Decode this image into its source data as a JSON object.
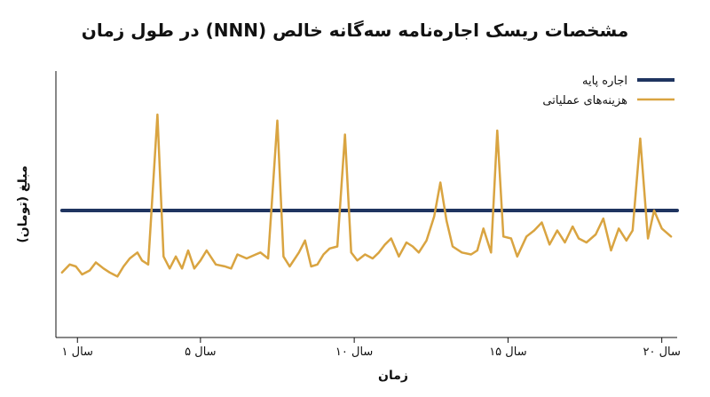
{
  "chart_data": {
    "type": "line",
    "title": "مشخصات ریسک اجاره‌نامه سه‌گانه خالص (NNN) در طول زمان",
    "xlabel": "زمان",
    "ylabel": "مبلغ (تومان)",
    "xlim": [
      0.3,
      20.5
    ],
    "ylim": [
      0,
      100
    ],
    "x_ticks": [
      {
        "value": 1,
        "label": "سال ۱"
      },
      {
        "value": 5,
        "label": "سال ۵"
      },
      {
        "value": 10,
        "label": "سال ۱۰"
      },
      {
        "value": 15,
        "label": "سال ۱۵"
      },
      {
        "value": 20,
        "label": "سال ۲۰"
      }
    ],
    "legend_position": "top-right",
    "grid": false,
    "series": [
      {
        "name": "اجاره پایه",
        "color": "#1f3460",
        "x": [
          0.5,
          20.5
        ],
        "values": [
          48,
          48
        ]
      },
      {
        "name": "هزینه‌های عملیاتی",
        "color": "#d9a441",
        "x": [
          0.5,
          0.75,
          0.95,
          1.15,
          1.4,
          1.6,
          1.85,
          2.05,
          2.3,
          2.5,
          2.7,
          2.95,
          3.1,
          3.3,
          3.6,
          3.8,
          4.0,
          4.2,
          4.4,
          4.6,
          4.8,
          5.0,
          5.2,
          5.5,
          5.8,
          6.0,
          6.2,
          6.5,
          6.8,
          6.95,
          7.2,
          7.5,
          7.7,
          7.9,
          8.2,
          8.4,
          8.6,
          8.8,
          9.0,
          9.2,
          9.45,
          9.7,
          9.9,
          10.1,
          10.35,
          10.6,
          10.8,
          11.0,
          11.2,
          11.45,
          11.7,
          11.9,
          12.1,
          12.35,
          12.6,
          12.8,
          13.0,
          13.2,
          13.5,
          13.8,
          14.0,
          14.2,
          14.45,
          14.65,
          14.85,
          15.1,
          15.3,
          15.6,
          15.85,
          16.1,
          16.35,
          16.6,
          16.85,
          17.1,
          17.3,
          17.55,
          17.85,
          18.1,
          18.35,
          18.6,
          18.85,
          19.05,
          19.3,
          19.55,
          19.75,
          20.0,
          20.3
        ],
        "values": [
          17,
          21,
          20,
          16,
          18,
          22,
          19,
          17,
          15,
          20,
          24,
          27,
          23,
          21,
          96,
          25,
          19,
          25,
          19,
          28,
          19,
          23,
          28,
          21,
          20,
          19,
          26,
          24,
          26,
          27,
          24,
          93,
          25,
          20,
          27,
          33,
          20,
          21,
          26,
          29,
          30,
          86,
          27,
          23,
          26,
          24,
          27,
          31,
          34,
          25,
          32,
          30,
          27,
          33,
          45,
          62,
          43,
          30,
          27,
          26,
          28,
          39,
          27,
          88,
          35,
          34,
          25,
          35,
          38,
          42,
          31,
          38,
          32,
          40,
          34,
          32,
          36,
          44,
          28,
          39,
          33,
          38,
          84,
          34,
          48,
          39,
          35
        ]
      }
    ]
  }
}
